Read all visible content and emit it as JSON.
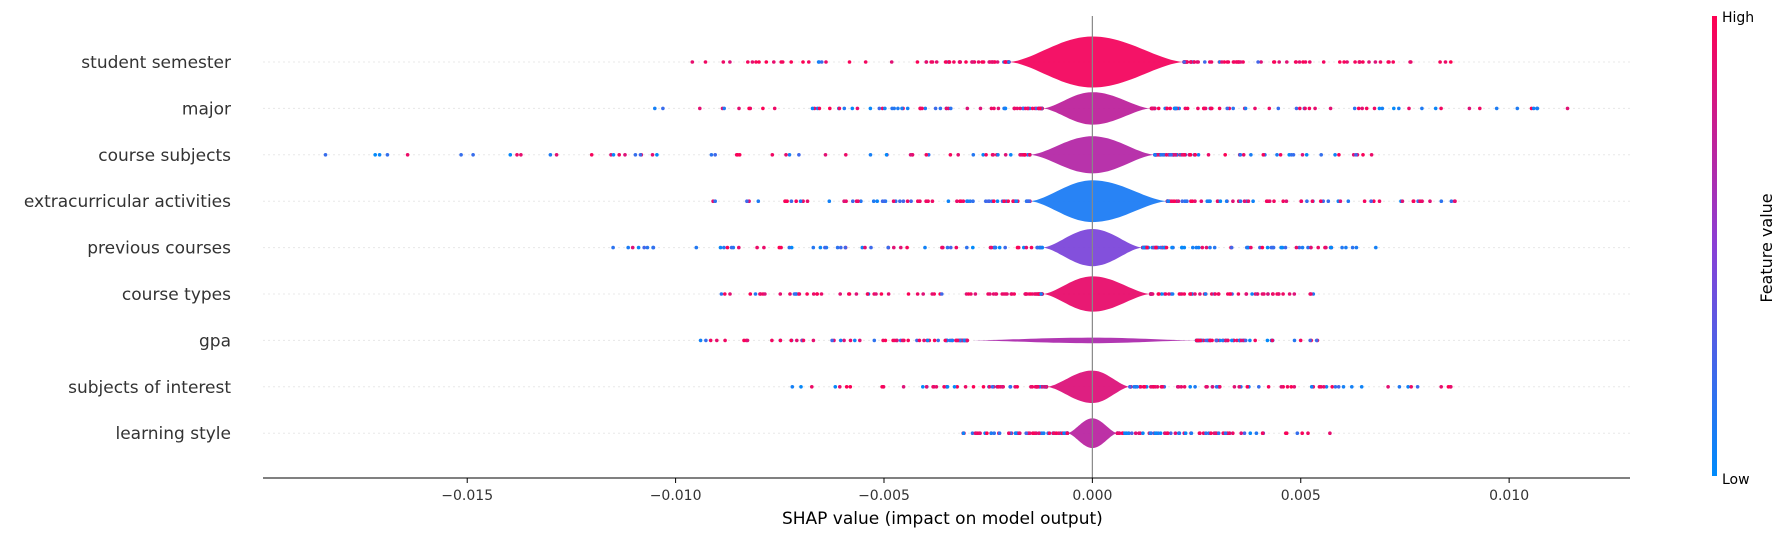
{
  "chart_data": {
    "type": "violin",
    "xlabel": "SHAP value (impact on model output)",
    "xlim": [
      -0.0199,
      0.0129
    ],
    "xticks": [
      -0.015,
      -0.01,
      -0.005,
      0.0,
      0.005,
      0.01
    ],
    "xtick_labels": [
      "−0.015",
      "−0.010",
      "−0.005",
      "0.000",
      "0.005",
      "0.010"
    ],
    "colorbar": {
      "title": "Feature value",
      "high_label": "High",
      "low_label": "Low",
      "high_color": "#ff0052",
      "low_color": "#008bfb"
    },
    "features": [
      {
        "name": "student semester",
        "color_value": 0.95,
        "core_min": -0.002,
        "core_max": 0.0022,
        "peak": 0.0,
        "half_height": 0.55,
        "extent": [
          -0.0096,
          0.0086
        ],
        "high_share": 0.85
      },
      {
        "name": "major",
        "color_value": 0.72,
        "core_min": -0.0012,
        "core_max": 0.0014,
        "peak": 0.0,
        "half_height": 0.35,
        "extent": [
          -0.0105,
          0.0114
        ],
        "high_share": 0.6
      },
      {
        "name": "course subjects",
        "color_value": 0.68,
        "core_min": -0.0015,
        "core_max": 0.0015,
        "peak": 0.0,
        "half_height": 0.4,
        "extent": [
          -0.0184,
          0.0067
        ],
        "high_share": 0.55
      },
      {
        "name": "extracurricular activities",
        "color_value": 0.1,
        "core_min": -0.0015,
        "core_max": 0.0018,
        "peak": 0.0,
        "half_height": 0.45,
        "extent": [
          -0.0091,
          0.0087
        ],
        "high_share": 0.5
      },
      {
        "name": "previous courses",
        "color_value": 0.45,
        "core_min": -0.0012,
        "core_max": 0.0012,
        "peak": 0.0,
        "half_height": 0.4,
        "extent": [
          -0.0115,
          0.0068
        ],
        "high_share": 0.45
      },
      {
        "name": "course types",
        "color_value": 0.9,
        "core_min": -0.0012,
        "core_max": 0.0014,
        "peak": 0.0,
        "half_height": 0.38,
        "extent": [
          -0.0089,
          0.0053
        ],
        "high_share": 0.75
      },
      {
        "name": "gpa",
        "color_value": 0.65,
        "core_min": -0.003,
        "core_max": 0.0025,
        "peak": 0.0,
        "half_height": 0.06,
        "extent": [
          -0.0094,
          0.0054
        ],
        "high_share": 0.5
      },
      {
        "name": "subjects of interest",
        "color_value": 0.85,
        "core_min": -0.0011,
        "core_max": 0.0009,
        "peak": 0.0,
        "half_height": 0.35,
        "extent": [
          -0.0072,
          0.0086
        ],
        "high_share": 0.65
      },
      {
        "name": "learning style",
        "color_value": 0.7,
        "core_min": -0.0006,
        "core_max": 0.0006,
        "peak": 0.0,
        "half_height": 0.32,
        "extent": [
          -0.0031,
          0.0057
        ],
        "high_share": 0.5
      }
    ]
  }
}
